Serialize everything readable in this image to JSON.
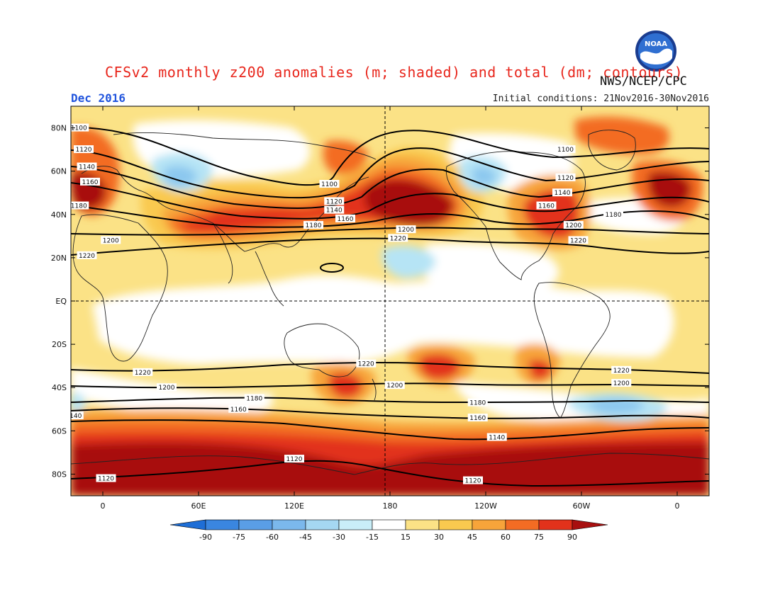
{
  "header": {
    "title": "CFSv2 monthly z200 anomalies (m; shaded) and total (dm; contours)",
    "agency": "NWS/NCEP/CPC",
    "month": "Dec 2016",
    "initial_conditions": "Initial conditions: 21Nov2016-30Nov2016",
    "logo_text": "NOAA"
  },
  "map": {
    "projection": "cylindrical-equidistant",
    "center_longitude": 180,
    "lon_range": [
      -20,
      380
    ],
    "lat_range": [
      -90,
      90
    ],
    "grid": "dashed at EQ and 180",
    "lat_ticks": [
      {
        "lat": 80,
        "label": "80N"
      },
      {
        "lat": 60,
        "label": "60N"
      },
      {
        "lat": 40,
        "label": "40N"
      },
      {
        "lat": 20,
        "label": "20N"
      },
      {
        "lat": 0,
        "label": "EQ"
      },
      {
        "lat": -20,
        "label": "20S"
      },
      {
        "lat": -40,
        "label": "40S"
      },
      {
        "lat": -60,
        "label": "60S"
      },
      {
        "lat": -80,
        "label": "80S"
      }
    ],
    "lon_ticks": [
      {
        "lon": 0,
        "label": "0"
      },
      {
        "lon": 60,
        "label": "60E"
      },
      {
        "lon": 120,
        "label": "120E"
      },
      {
        "lon": 180,
        "label": "180"
      },
      {
        "lon": 240,
        "label": "120W"
      },
      {
        "lon": 300,
        "label": "60W"
      },
      {
        "lon": 360,
        "label": "0"
      }
    ],
    "colors": {
      "light_yellow": "#fbe286",
      "yellow": "#f9c94f",
      "orange_light": "#f7a43a",
      "orange": "#f36c23",
      "red": "#e2321b",
      "dark_red": "#a80f0f",
      "blue_light": "#b6e4f5",
      "blue_mid": "#8cc8ef",
      "blue": "#3f8fde"
    },
    "contour_labels": [
      {
        "lon": -15,
        "lat": 80,
        "text": "1100"
      },
      {
        "lon": -12,
        "lat": 70,
        "text": "1120"
      },
      {
        "lon": -10,
        "lat": 62,
        "text": "1140"
      },
      {
        "lon": -8,
        "lat": 55,
        "text": "1160"
      },
      {
        "lon": -15,
        "lat": 44,
        "text": "1180"
      },
      {
        "lon": 5,
        "lat": 28,
        "text": "1200"
      },
      {
        "lon": -10,
        "lat": 21,
        "text": "1220"
      },
      {
        "lon": 142,
        "lat": 54,
        "text": "1100"
      },
      {
        "lon": 145,
        "lat": 46,
        "text": "1120"
      },
      {
        "lon": 145,
        "lat": 42,
        "text": "1140"
      },
      {
        "lon": 152,
        "lat": 38,
        "text": "1160"
      },
      {
        "lon": 132,
        "lat": 35,
        "text": "1180"
      },
      {
        "lon": 190,
        "lat": 33,
        "text": "1200"
      },
      {
        "lon": 185,
        "lat": 29,
        "text": "1220"
      },
      {
        "lon": 290,
        "lat": 70,
        "text": "1100"
      },
      {
        "lon": 290,
        "lat": 57,
        "text": "1120"
      },
      {
        "lon": 288,
        "lat": 50,
        "text": "1140"
      },
      {
        "lon": 278,
        "lat": 44,
        "text": "1160"
      },
      {
        "lon": 320,
        "lat": 40,
        "text": "1180"
      },
      {
        "lon": 295,
        "lat": 35,
        "text": "1200"
      },
      {
        "lon": 298,
        "lat": 28,
        "text": "1220"
      },
      {
        "lon": 25,
        "lat": -33,
        "text": "1220"
      },
      {
        "lon": 165,
        "lat": -29,
        "text": "1220"
      },
      {
        "lon": 325,
        "lat": -32,
        "text": "1220"
      },
      {
        "lon": 40,
        "lat": -40,
        "text": "1200"
      },
      {
        "lon": 183,
        "lat": -39,
        "text": "1200"
      },
      {
        "lon": 325,
        "lat": -38,
        "text": "1200"
      },
      {
        "lon": 95,
        "lat": -45,
        "text": "1180"
      },
      {
        "lon": 235,
        "lat": -47,
        "text": "1180"
      },
      {
        "lon": 85,
        "lat": -50,
        "text": "1160"
      },
      {
        "lon": 235,
        "lat": -54,
        "text": "1160"
      },
      {
        "lon": 247,
        "lat": -63,
        "text": "1140"
      },
      {
        "lon": 120,
        "lat": -73,
        "text": "1120"
      },
      {
        "lon": 232,
        "lat": -83,
        "text": "1120"
      },
      {
        "lon": 2,
        "lat": -82,
        "text": "1120"
      },
      {
        "lon": -17,
        "lat": -53,
        "text": "140"
      }
    ]
  },
  "colorbar": {
    "levels": [
      "-90",
      "-75",
      "-60",
      "-45",
      "-30",
      "-15",
      "15",
      "30",
      "45",
      "60",
      "75",
      "90"
    ],
    "colors": [
      "#1e6ed6",
      "#3a86e0",
      "#5a9ee6",
      "#7bb8ec",
      "#a5d7f2",
      "#c9eef8",
      "#ffffff",
      "#fbe286",
      "#f9c94f",
      "#f7a43a",
      "#f36c23",
      "#e2321b",
      "#a80f0f"
    ]
  }
}
